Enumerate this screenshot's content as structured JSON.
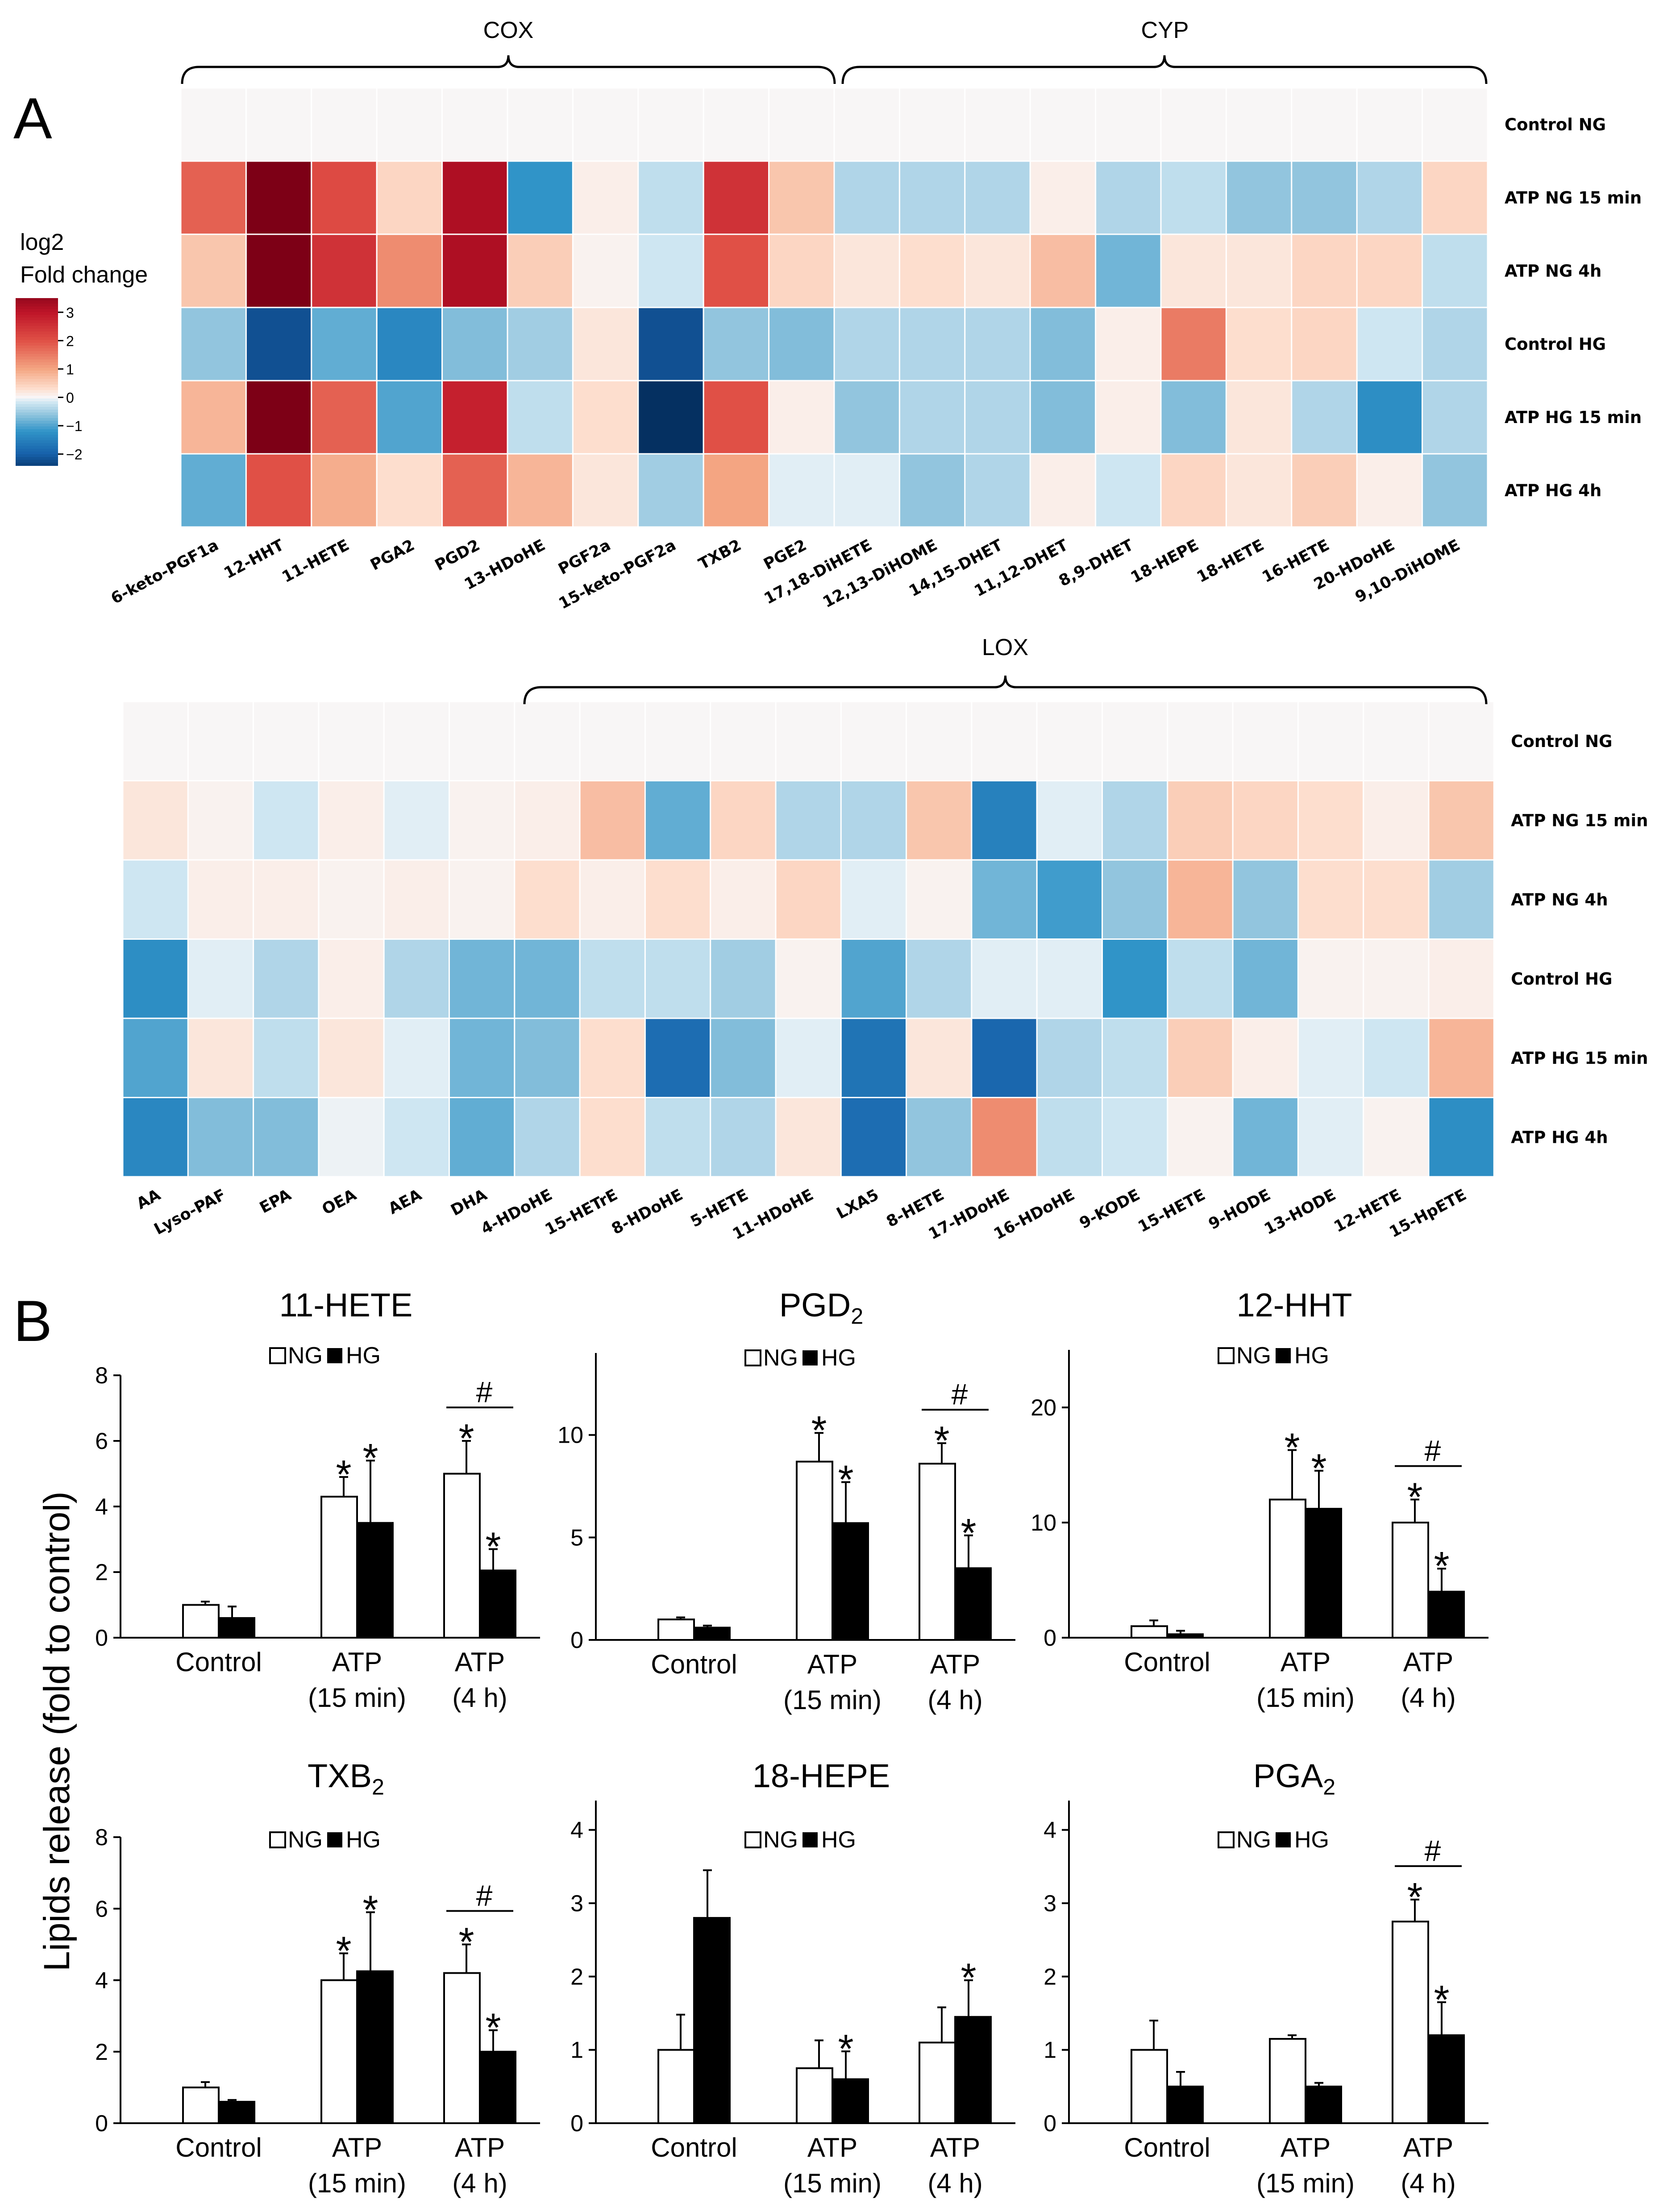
{
  "panel_labels": [
    "A",
    "B"
  ],
  "legend": {
    "title_line1": "log2",
    "title_line2": "Fold change",
    "ticks": [
      "3",
      "2",
      "1",
      "0",
      "−1",
      "−2"
    ]
  },
  "heatmap1": {
    "groups": [
      "COX",
      "CYP"
    ],
    "rows": [
      "Control NG",
      "ATP NG 15 min",
      "ATP NG 4h",
      "Control HG",
      "ATP HG 15 min",
      "ATP HG 4h"
    ],
    "columns": [
      "6-keto-PGF1a",
      "12-HHT",
      "11-HETE",
      "PGA2",
      "PGD2",
      "13-HDoHE",
      "PGF2a",
      "15-keto-PGF2a",
      "TXB2",
      "PGE2",
      "17,18-DiHETE",
      "12,13-DiHOME",
      "14,15-DHET",
      "11,12-DHET",
      "8,9-DHET",
      "18-HEPE",
      "18-HETE",
      "16-HETE",
      "20-HDoHE",
      "9,10-DiHOME"
    ]
  },
  "heatmap2": {
    "groups": [
      "LOX"
    ],
    "rows": [
      "Control NG",
      "ATP NG 15 min",
      "ATP NG 4h",
      "Control HG",
      "ATP HG 15 min",
      "ATP HG 4h"
    ],
    "columns": [
      "AA",
      "Lyso-PAF",
      "EPA",
      "OEA",
      "AEA",
      "DHA",
      "4-HDoHE",
      "15-HETrE",
      "8-HDoHE",
      "5-HETE",
      "11-HDoHE",
      "LXA5",
      "8-HETE",
      "17-HDoHE",
      "16-HDoHE",
      "9-KODE",
      "15-HETE",
      "9-HODE",
      "13-HODE",
      "12-HETE",
      "15-HpETE"
    ]
  },
  "bars": {
    "ylabel": "Lipids release (fold to control)",
    "legend": [
      "NG",
      "HG"
    ],
    "x_categories": [
      [
        "Control"
      ],
      [
        "ATP",
        "(15 min)"
      ],
      [
        "ATP",
        "(4 h)"
      ]
    ],
    "sig_star": "*",
    "sig_hash": "#"
  },
  "chart_data": [
    {
      "type": "heatmap",
      "x": [
        "6-keto-PGF1a",
        "12-HHT",
        "11-HETE",
        "PGA2",
        "PGD2",
        "13-HDoHE",
        "PGF2a",
        "15-keto-PGF2a",
        "TXB2",
        "PGE2",
        "17,18-DiHETE",
        "12,13-DiHOME",
        "14,15-DHET",
        "11,12-DHET",
        "8,9-DHET",
        "18-HEPE",
        "18-HETE",
        "16-HETE",
        "20-HDoHE",
        "9,10-DiHOME"
      ],
      "y": [
        "Control NG",
        "ATP NG 15 min",
        "ATP NG 4h",
        "Control HG",
        "ATP HG 15 min",
        "ATP HG 4h"
      ],
      "values": [
        [
          0,
          0,
          0,
          0,
          0,
          0,
          0,
          0,
          0,
          0,
          0,
          0,
          0,
          0,
          0,
          0,
          0,
          0,
          0,
          0
        ],
        [
          1.8,
          3.8,
          2.1,
          0.4,
          3.2,
          -1.2,
          0.1,
          -0.3,
          2.5,
          0.6,
          -0.4,
          -0.4,
          -0.4,
          0.1,
          -0.4,
          -0.3,
          -0.6,
          -0.6,
          -0.4,
          0.4
        ],
        [
          0.6,
          3.8,
          2.5,
          1.3,
          3.2,
          0.5,
          0.05,
          -0.2,
          2.0,
          0.4,
          0.2,
          0.3,
          0.2,
          0.7,
          -0.8,
          0.2,
          0.2,
          0.4,
          0.4,
          -0.3
        ],
        [
          -0.6,
          -2.2,
          -0.9,
          -1.4,
          -0.7,
          -0.5,
          0.2,
          -2.2,
          -0.6,
          -0.7,
          -0.4,
          -0.4,
          -0.4,
          -0.7,
          0.1,
          1.5,
          0.3,
          0.4,
          -0.2,
          -0.4
        ],
        [
          0.8,
          3.8,
          1.8,
          -1.0,
          2.8,
          -0.3,
          0.3,
          -3.0,
          2.0,
          0.1,
          -0.6,
          -0.4,
          -0.4,
          -0.7,
          0.1,
          -0.7,
          0.2,
          -0.4,
          -1.3,
          -0.4
        ],
        [
          -0.9,
          2.0,
          0.9,
          0.3,
          1.8,
          0.8,
          0.2,
          -0.5,
          1.0,
          -0.1,
          -0.1,
          -0.6,
          -0.4,
          0.1,
          -0.2,
          0.4,
          0.2,
          0.5,
          0.1,
          -0.6
        ]
      ],
      "colorbar": {
        "min": -2,
        "max": 3,
        "ticks": [
          3,
          2,
          1,
          0,
          -1,
          -2
        ]
      },
      "title": "",
      "xlabel": "",
      "ylabel": ""
    },
    {
      "type": "heatmap",
      "x": [
        "AA",
        "Lyso-PAF",
        "EPA",
        "OEA",
        "AEA",
        "DHA",
        "4-HDoHE",
        "15-HETrE",
        "8-HDoHE",
        "5-HETE",
        "11-HDoHE",
        "LXA5",
        "8-HETE",
        "17-HDoHE",
        "16-HDoHE",
        "9-KODE",
        "15-HETE",
        "9-HODE",
        "13-HODE",
        "12-HETE",
        "15-HpETE"
      ],
      "y": [
        "Control NG",
        "ATP NG 15 min",
        "ATP NG 4h",
        "Control HG",
        "ATP HG 15 min",
        "ATP HG 4h"
      ],
      "values": [
        [
          0,
          0,
          0,
          0,
          0,
          0,
          0,
          0,
          0,
          0,
          0,
          0,
          0,
          0,
          0,
          0,
          0,
          0,
          0,
          0,
          0
        ],
        [
          0.2,
          0.05,
          -0.2,
          0.1,
          -0.1,
          0.05,
          0.1,
          0.7,
          -0.9,
          0.4,
          -0.4,
          -0.4,
          0.6,
          -1.5,
          -0.1,
          -0.4,
          0.5,
          0.4,
          0.3,
          0.1,
          0.6
        ],
        [
          -0.2,
          0.1,
          0.1,
          0.05,
          0.1,
          0.05,
          0.3,
          0.1,
          0.3,
          0.1,
          0.4,
          -0.1,
          0.05,
          -0.8,
          -1.1,
          -0.6,
          0.8,
          -0.6,
          0.3,
          0.3,
          -0.5
        ],
        [
          -1.3,
          -0.1,
          -0.4,
          0.1,
          -0.4,
          -0.8,
          -0.8,
          -0.3,
          -0.3,
          -0.5,
          0.05,
          -1.0,
          -0.4,
          -0.1,
          -0.1,
          -1.2,
          -0.3,
          -0.8,
          0.05,
          0.05,
          0.1
        ],
        [
          -1.0,
          0.2,
          -0.3,
          0.2,
          -0.1,
          -0.8,
          -0.7,
          0.3,
          -1.8,
          -0.7,
          -0.1,
          -1.7,
          0.2,
          -1.9,
          -0.4,
          -0.3,
          0.5,
          0.1,
          -0.1,
          -0.2,
          0.8
        ],
        [
          -1.4,
          -0.7,
          -0.7,
          -0.05,
          -0.2,
          -0.9,
          -0.4,
          0.3,
          -0.3,
          -0.4,
          0.2,
          -1.8,
          -0.6,
          1.3,
          -0.3,
          -0.2,
          0.05,
          -0.8,
          -0.1,
          0.05,
          -1.3
        ]
      ],
      "colorbar": {
        "min": -2,
        "max": 3,
        "ticks": [
          3,
          2,
          1,
          0,
          -1,
          -2
        ]
      },
      "title": "",
      "xlabel": "",
      "ylabel": ""
    },
    {
      "type": "bar",
      "title": "11-HETE",
      "categories": [
        "Control",
        "ATP (15 min)",
        "ATP (4 h)"
      ],
      "series": [
        {
          "name": "NG",
          "values": [
            1.0,
            4.3,
            5.0
          ],
          "errors": [
            0.1,
            0.6,
            1.0
          ],
          "sig": [
            "",
            "*",
            "*"
          ]
        },
        {
          "name": "HG",
          "values": [
            0.6,
            3.5,
            2.05
          ],
          "errors": [
            0.35,
            1.9,
            0.65
          ],
          "sig": [
            "",
            "*",
            "*"
          ]
        }
      ],
      "hash": [
        false,
        false,
        true
      ],
      "ylim": [
        0,
        8
      ],
      "yticks": [
        0,
        2,
        4,
        6,
        8
      ],
      "xlabel": "",
      "ylabel": "Lipids release (fold to control)"
    },
    {
      "type": "bar",
      "title": "PGD2",
      "categories": [
        "Control",
        "ATP (15 min)",
        "ATP (4 h)"
      ],
      "series": [
        {
          "name": "NG",
          "values": [
            1.0,
            8.7,
            8.6
          ],
          "errors": [
            0.1,
            1.4,
            1.0
          ],
          "sig": [
            "",
            "*",
            "*"
          ]
        },
        {
          "name": "HG",
          "values": [
            0.6,
            5.7,
            3.5
          ],
          "errors": [
            0.1,
            2.0,
            1.6
          ],
          "sig": [
            "",
            "*",
            "*"
          ]
        }
      ],
      "hash": [
        false,
        false,
        true
      ],
      "ylim": [
        0,
        14
      ],
      "yticks": [
        0,
        5,
        10
      ],
      "xlabel": "",
      "ylabel": ""
    },
    {
      "type": "bar",
      "title": "12-HHT",
      "categories": [
        "Control",
        "ATP (15 min)",
        "ATP (4 h)"
      ],
      "series": [
        {
          "name": "NG",
          "values": [
            1.0,
            12.0,
            10.0
          ],
          "errors": [
            0.5,
            4.3,
            2.0
          ],
          "sig": [
            "",
            "*",
            "*"
          ]
        },
        {
          "name": "HG",
          "values": [
            0.3,
            11.2,
            4.0
          ],
          "errors": [
            0.3,
            3.3,
            2.0
          ],
          "sig": [
            "",
            "*",
            "*"
          ]
        }
      ],
      "hash": [
        false,
        false,
        true
      ],
      "ylim": [
        0,
        25
      ],
      "yticks": [
        0,
        10,
        20
      ],
      "xlabel": "",
      "ylabel": ""
    },
    {
      "type": "bar",
      "title": "TXB2",
      "categories": [
        "Control",
        "ATP (15 min)",
        "ATP (4 h)"
      ],
      "series": [
        {
          "name": "NG",
          "values": [
            1.0,
            4.0,
            4.2
          ],
          "errors": [
            0.15,
            0.75,
            0.8
          ],
          "sig": [
            "",
            "*",
            "*"
          ]
        },
        {
          "name": "HG",
          "values": [
            0.6,
            4.25,
            2.0
          ],
          "errors": [
            0.05,
            1.65,
            0.6
          ],
          "sig": [
            "",
            "*",
            "*"
          ]
        }
      ],
      "hash": [
        false,
        false,
        true
      ],
      "ylim": [
        0,
        8
      ],
      "yticks": [
        0,
        2,
        4,
        6,
        8
      ],
      "xlabel": "",
      "ylabel": ""
    },
    {
      "type": "bar",
      "title": "18-HEPE",
      "categories": [
        "Control",
        "ATP (15 min)",
        "ATP (4 h)"
      ],
      "series": [
        {
          "name": "NG",
          "values": [
            1.0,
            0.75,
            1.1
          ],
          "errors": [
            0.48,
            0.38,
            0.48
          ],
          "sig": [
            "",
            "",
            ""
          ]
        },
        {
          "name": "HG",
          "values": [
            2.8,
            0.6,
            1.45
          ],
          "errors": [
            0.65,
            0.38,
            0.5
          ],
          "sig": [
            "",
            "*",
            "*"
          ]
        }
      ],
      "hash": [
        false,
        false,
        false
      ],
      "ylim": [
        0,
        4.4
      ],
      "yticks": [
        0,
        1,
        2,
        3,
        4
      ],
      "xlabel": "",
      "ylabel": ""
    },
    {
      "type": "bar",
      "title": "PGA2",
      "categories": [
        "Control",
        "ATP (15 min)",
        "ATP (4 h)"
      ],
      "series": [
        {
          "name": "NG",
          "values": [
            1.0,
            1.15,
            2.75
          ],
          "errors": [
            0.4,
            0.05,
            0.3
          ],
          "sig": [
            "",
            "",
            "*"
          ]
        },
        {
          "name": "HG",
          "values": [
            0.5,
            0.5,
            1.2
          ],
          "errors": [
            0.2,
            0.05,
            0.45
          ],
          "sig": [
            "",
            "",
            "*"
          ]
        }
      ],
      "hash": [
        false,
        false,
        true
      ],
      "ylim": [
        0,
        4.4
      ],
      "yticks": [
        0,
        1,
        2,
        3,
        4
      ],
      "xlabel": "",
      "ylabel": ""
    }
  ]
}
